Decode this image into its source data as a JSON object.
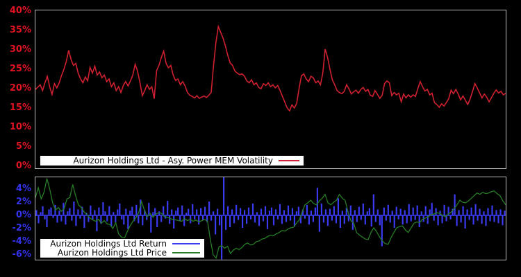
{
  "figure": {
    "background": "#000000",
    "panel_border_color": "#bfbfbf",
    "legend_background": "#ffffff",
    "legend_border_color": "#000000"
  },
  "chart_data": [
    {
      "type": "line",
      "title": "",
      "xlabel": "",
      "ylabel": "",
      "x_tick_labels": [],
      "grid": false,
      "legend_position": "bottom-inside",
      "tick_color": "#e01323",
      "ylim": [
        -0.54,
        40.18
      ],
      "yticks": [
        {
          "v": 40,
          "label": "40%"
        },
        {
          "v": 35,
          "label": "35%"
        },
        {
          "v": 30,
          "label": "30%"
        },
        {
          "v": 25,
          "label": "25%"
        },
        {
          "v": 20,
          "label": "20%"
        },
        {
          "v": 15,
          "label": "15%"
        },
        {
          "v": 10,
          "label": "10%"
        },
        {
          "v": 5,
          "label": "5%"
        },
        {
          "v": 0,
          "label": "0%"
        }
      ],
      "series": [
        {
          "name": "Aurizon Holdings Ltd - Asy. Power MEM Volatility",
          "kind": "line",
          "color": "#cf2030",
          "stroke": 1.6,
          "unit": "%",
          "values": [
            19.8,
            20.4,
            21.0,
            19.5,
            21.5,
            23.2,
            20.5,
            18.5,
            21.3,
            20.2,
            21.5,
            23.4,
            25.0,
            27.0,
            29.9,
            27.5,
            26.0,
            26.5,
            24.0,
            22.5,
            21.5,
            23.0,
            22.0,
            25.5,
            24.0,
            25.8,
            23.5,
            24.3,
            22.8,
            23.5,
            21.8,
            22.5,
            20.5,
            21.5,
            19.5,
            20.5,
            19.0,
            20.8,
            21.8,
            20.7,
            22.0,
            23.5,
            26.3,
            24.5,
            21.6,
            18.2,
            19.5,
            21.0,
            19.8,
            20.5,
            17.4,
            24.6,
            26.0,
            28.0,
            29.7,
            26.5,
            25.4,
            26.0,
            23.5,
            22.1,
            22.5,
            21.0,
            21.8,
            20.7,
            19.0,
            18.3,
            18.0,
            17.6,
            18.2,
            17.5,
            17.8,
            18.1,
            17.7,
            18.3,
            19.0,
            26.0,
            32.0,
            36.0,
            34.5,
            33.0,
            31.0,
            28.5,
            26.6,
            26.0,
            24.5,
            24.0,
            23.6,
            23.8,
            23.2,
            22.0,
            21.5,
            22.3,
            21.0,
            21.5,
            20.3,
            20.0,
            21.3,
            20.8,
            21.5,
            20.5,
            21.0,
            20.2,
            20.8,
            19.5,
            18.0,
            16.5,
            15.0,
            14.3,
            15.8,
            15.0,
            16.2,
            20.0,
            23.3,
            23.8,
            22.5,
            21.8,
            23.2,
            22.8,
            21.5,
            22.0,
            21.0,
            24.0,
            30.2,
            28.0,
            25.0,
            22.3,
            21.0,
            19.5,
            19.0,
            18.7,
            19.3,
            21.0,
            20.0,
            18.6,
            19.2,
            19.6,
            18.8,
            19.8,
            20.3,
            19.3,
            19.8,
            18.3,
            18.0,
            19.5,
            18.5,
            17.5,
            18.3,
            21.3,
            22.0,
            21.5,
            18.2,
            19.0,
            18.4,
            18.8,
            16.6,
            18.6,
            17.6,
            18.4,
            17.8,
            18.4,
            18.0,
            20.0,
            21.8,
            20.5,
            19.4,
            19.8,
            18.4,
            18.8,
            16.4,
            15.9,
            15.2,
            16.1,
            15.5,
            16.4,
            17.4,
            19.6,
            18.7,
            19.8,
            18.6,
            17.1,
            18.1,
            17.0,
            15.9,
            17.3,
            19.2,
            21.3,
            20.2,
            18.9,
            17.6,
            18.6,
            17.8,
            16.6,
            17.7,
            18.8,
            19.7,
            18.9,
            19.3,
            18.4,
            18.8
          ]
        }
      ]
    },
    {
      "type": "bar+line",
      "title": "",
      "xlabel": "",
      "ylabel": "",
      "x_tick_labels": [],
      "grid": false,
      "legend_position": "bottom-inside",
      "tick_color": "#3333ee",
      "ylim": [
        -6.74,
        5.79
      ],
      "yticks": [
        {
          "v": 4,
          "label": "4%"
        },
        {
          "v": 2,
          "label": "2%"
        },
        {
          "v": 0,
          "label": "0%"
        },
        {
          "v": -2,
          "label": "-2%"
        },
        {
          "v": -4,
          "label": "-4%"
        },
        {
          "v": -6,
          "label": "-6%"
        }
      ],
      "series": [
        {
          "name": "Aurizon Holdings Ltd Return",
          "kind": "bar",
          "color": "#3a3af0",
          "unit": "%",
          "values": [
            0.8,
            -1.2,
            0.5,
            1.4,
            -0.6,
            -1.8,
            0.9,
            1.2,
            -0.4,
            1.6,
            -1.1,
            0.7,
            -0.9,
            1.9,
            -1.4,
            0.6,
            1.1,
            -0.8,
            2.1,
            -1.6,
            0.9,
            -0.5,
            1.3,
            -1.9,
            0.4,
            -1.0,
            1.5,
            -0.7,
            0.8,
            -2.4,
            1.2,
            -1.3,
            2.0,
            0.6,
            -0.9,
            1.4,
            -1.7,
            0.5,
            -1.1,
            0.9,
            1.8,
            -0.6,
            -1.4,
            1.0,
            -2.1,
            0.7,
            1.3,
            -0.9,
            1.6,
            -1.2,
            2.4,
            -1.5,
            0.8,
            -0.7,
            1.9,
            -2.6,
            0.5,
            1.1,
            -1.8,
            0.6,
            -1.0,
            1.4,
            -0.5,
            2.2,
            -1.3,
            0.9,
            -2.0,
            0.7,
            1.2,
            -0.8,
            1.5,
            -1.6,
            0.4,
            1.0,
            -1.2,
            1.7,
            -0.6,
            0.9,
            -1.4,
            1.1,
            -0.7,
            1.3,
            -1.0,
            2.1,
            -0.8,
            0.6,
            -2.9,
            1.0,
            -1.5,
            -6.7,
            5.8,
            -2.2,
            1.4,
            -1.8,
            0.9,
            -1.2,
            1.6,
            -0.7,
            1.1,
            -1.9,
            0.8,
            -1.3,
            1.2,
            -0.6,
            1.8,
            -1.1,
            0.5,
            -1.6,
            1.0,
            -0.9,
            1.4,
            -2.1,
            0.7,
            1.2,
            -1.5,
            0.9,
            -0.6,
            1.7,
            -1.3,
            0.8,
            -1.0,
            1.5,
            -0.8,
            1.1,
            -1.7,
            0.6,
            1.3,
            -1.2,
            0.9,
            -0.5,
            1.6,
            -1.4,
            0.7,
            -1.0,
            1.2,
            4.2,
            -2.5,
            1.8,
            -1.1,
            0.9,
            -1.6,
            1.0,
            -0.8,
            1.4,
            -1.2,
            2.6,
            -1.9,
            0.7,
            -1.3,
            1.1,
            -0.9,
            1.5,
            -2.2,
            0.8,
            -1.0,
            1.3,
            -0.7,
            1.8,
            -1.4,
            0.6,
            1.1,
            -1.7,
            3.2,
            -1.0,
            0.9,
            -1.5,
            -4.7,
            1.2,
            -0.8,
            1.6,
            -1.1,
            0.7,
            -1.9,
            1.3,
            -0.6,
            1.0,
            -1.4,
            0.8,
            -1.2,
            1.7,
            -0.9,
            1.2,
            -0.7,
            1.5,
            -1.8,
            0.6,
            -1.0,
            1.4,
            -1.3,
            0.9,
            1.9,
            -0.8,
            1.1,
            -1.5,
            0.7,
            -1.2,
            1.6,
            -0.9,
            1.3,
            -0.6,
            1.0,
            3.2,
            -1.6,
            0.8,
            -1.1,
            1.4,
            -2.0,
            0.9,
            -0.7,
            1.2,
            -1.4,
            1.7,
            -0.8,
            1.0,
            -1.3,
            0.6,
            -1.6,
            1.1,
            -0.9,
            1.5,
            -1.0,
            0.8,
            -1.2,
            0.9,
            -1.5,
            0.7
          ]
        },
        {
          "name": "Aurizon Holdings Ltd Price",
          "kind": "line",
          "color": "#277d27",
          "stroke": 1.3,
          "unit": "%",
          "values": [
            2.7,
            4.2,
            2.5,
            3.5,
            5.6,
            4.0,
            1.9,
            0.8,
            1.2,
            0.6,
            1.0,
            2.5,
            2.7,
            4.7,
            3.0,
            1.6,
            1.2,
            0.5,
            0.1,
            -0.4,
            -0.7,
            -0.9,
            -0.6,
            -1.2,
            -0.8,
            -1.3,
            -1.4,
            -2.0,
            -1.1,
            -2.8,
            -3.3,
            -3.5,
            -2.5,
            -1.6,
            -0.9,
            -0.4,
            0.4,
            2.1,
            0.8,
            -0.2,
            0.3,
            -0.3,
            0.2,
            0.4,
            0.3,
            -0.2,
            -0.3,
            -0.5,
            -0.6,
            -0.7,
            -0.8,
            -0.9,
            -0.5,
            -0.8,
            -0.6,
            -0.9,
            -0.7,
            -1.0,
            -0.8,
            -0.6,
            -0.9,
            -3.7,
            -6.0,
            -6.5,
            -4.8,
            -4.6,
            -5.0,
            -4.7,
            -5.8,
            -5.3,
            -5.0,
            -5.2,
            -4.9,
            -4.4,
            -4.2,
            -4.5,
            -4.4,
            -4.0,
            -3.9,
            -3.6,
            -3.5,
            -3.2,
            -3.0,
            -3.1,
            -2.8,
            -2.6,
            -2.3,
            -2.4,
            -2.1,
            -1.9,
            -1.8,
            -1.2,
            -0.7,
            0.5,
            1.6,
            1.9,
            2.3,
            1.8,
            1.6,
            2.2,
            2.6,
            3.2,
            1.9,
            1.6,
            2.0,
            2.3,
            3.2,
            2.6,
            2.3,
            0.5,
            -0.8,
            -1.2,
            -2.6,
            -3.0,
            -3.3,
            -3.6,
            -3.7,
            -2.6,
            -1.9,
            -2.5,
            -3.3,
            -3.9,
            -4.3,
            -4.4,
            -3.4,
            -2.6,
            -1.9,
            -1.7,
            -1.6,
            -2.2,
            -2.6,
            -1.9,
            -1.2,
            -1.0,
            -1.1,
            -0.6,
            -0.4,
            -0.2,
            0.1,
            0.2,
            0.4,
            0.3,
            0.0,
            -0.2,
            0.2,
            0.5,
            1.0,
            1.6,
            2.3,
            2.0,
            1.9,
            2.2,
            2.6,
            3.0,
            3.4,
            3.2,
            3.5,
            3.3,
            3.4,
            3.6,
            3.7,
            3.3,
            3.0,
            2.2,
            1.6
          ]
        }
      ]
    }
  ]
}
